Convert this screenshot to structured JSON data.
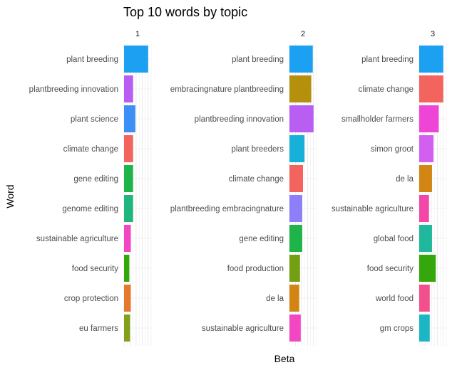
{
  "chart_data": {
    "type": "bar",
    "orientation": "horizontal",
    "faceted": true,
    "title": "Top 10 words by topic",
    "xlabel": "Beta",
    "ylabel": "Word",
    "grid": true,
    "legend": "none",
    "panels": [
      {
        "label": "1",
        "bars": [
          {
            "word": "plant breeding",
            "beta": 0.032,
            "color": "#1ba0f2"
          },
          {
            "word": "plantbreeding innovation",
            "beta": 0.012,
            "color": "#b85ef2"
          },
          {
            "word": "plant science",
            "beta": 0.015,
            "color": "#3d8ff5"
          },
          {
            "word": "climate change",
            "beta": 0.012,
            "color": "#f4645e"
          },
          {
            "word": "gene editing",
            "beta": 0.012,
            "color": "#1fb44a"
          },
          {
            "word": "genome editing",
            "beta": 0.012,
            "color": "#1fb57e"
          },
          {
            "word": "sustainable agriculture",
            "beta": 0.009,
            "color": "#f246c2"
          },
          {
            "word": "food security",
            "beta": 0.007,
            "color": "#33a70b"
          },
          {
            "word": "crop protection",
            "beta": 0.009,
            "color": "#e47a2c"
          },
          {
            "word": "eu farmers",
            "beta": 0.008,
            "color": "#83a01b"
          }
        ]
      },
      {
        "label": "2",
        "bars": [
          {
            "word": "plant breeding",
            "beta": 0.031,
            "color": "#1ba0f2"
          },
          {
            "word": "embracingnature plantbreeding",
            "beta": 0.029,
            "color": "#b5900c"
          },
          {
            "word": "plantbreeding innovation",
            "beta": 0.032,
            "color": "#b85ef2"
          },
          {
            "word": "plant breeders",
            "beta": 0.02,
            "color": "#16b0d8"
          },
          {
            "word": "climate change",
            "beta": 0.018,
            "color": "#f4645e"
          },
          {
            "word": "plantbreeding embracingnature",
            "beta": 0.017,
            "color": "#8c7ff8"
          },
          {
            "word": "gene editing",
            "beta": 0.017,
            "color": "#1fb44a"
          },
          {
            "word": "food production",
            "beta": 0.014,
            "color": "#739f12"
          },
          {
            "word": "de la",
            "beta": 0.013,
            "color": "#d28513"
          },
          {
            "word": "sustainable agriculture",
            "beta": 0.015,
            "color": "#f246c2"
          }
        ]
      },
      {
        "label": "3",
        "bars": [
          {
            "word": "plant breeding",
            "beta": 0.032,
            "color": "#1ba0f2"
          },
          {
            "word": "climate change",
            "beta": 0.032,
            "color": "#f4645e"
          },
          {
            "word": "smallholder farmers",
            "beta": 0.026,
            "color": "#ef45d6"
          },
          {
            "word": "simon groot",
            "beta": 0.019,
            "color": "#d35ff0"
          },
          {
            "word": "de la",
            "beta": 0.017,
            "color": "#d28513"
          },
          {
            "word": "sustainable agriculture",
            "beta": 0.013,
            "color": "#f246a8"
          },
          {
            "word": "global food",
            "beta": 0.017,
            "color": "#1fb89a"
          },
          {
            "word": "food security",
            "beta": 0.022,
            "color": "#33a70b"
          },
          {
            "word": "world food",
            "beta": 0.014,
            "color": "#f2508c"
          },
          {
            "word": "gm crops",
            "beta": 0.014,
            "color": "#1bb6c4"
          }
        ]
      }
    ]
  }
}
